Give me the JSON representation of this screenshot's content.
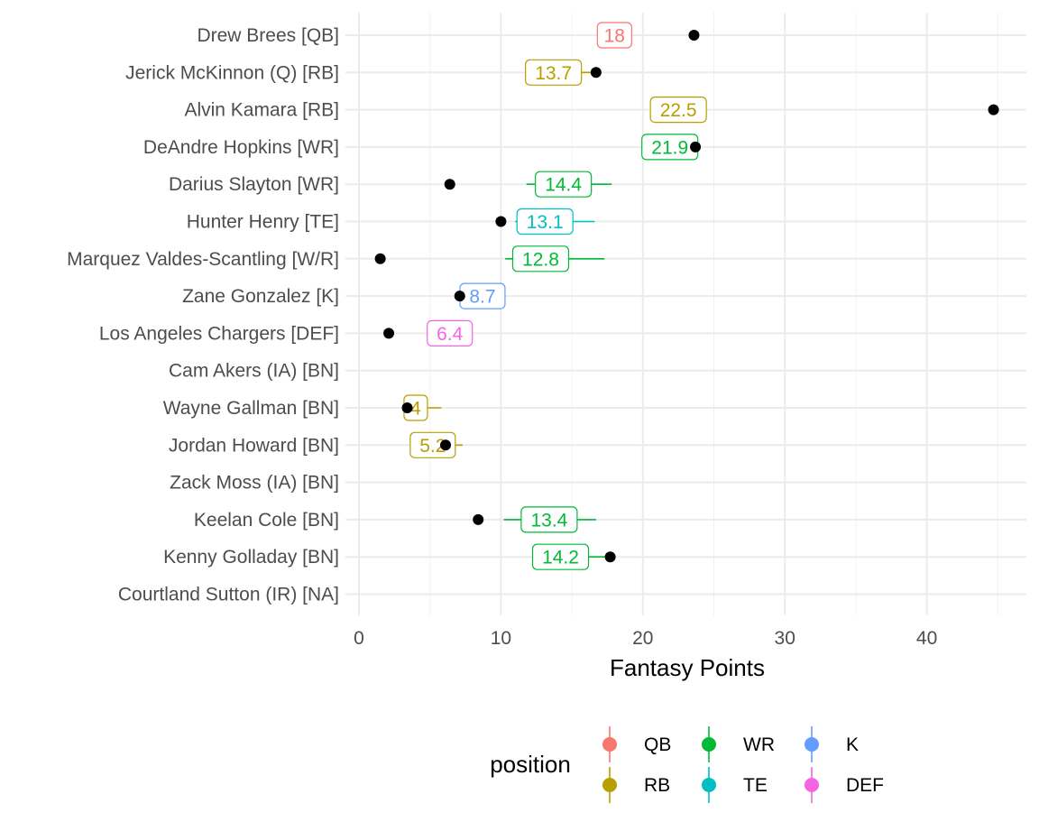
{
  "chart_data": {
    "type": "scatter",
    "xlabel": "Fantasy Points",
    "ylabel": "",
    "xlim": [
      0,
      47
    ],
    "x_ticks": [
      0,
      10,
      20,
      30,
      40
    ],
    "grid": true,
    "legend": {
      "title": "position",
      "placement": "bottom",
      "entries": [
        {
          "label": "QB",
          "color": "#F8766D"
        },
        {
          "label": "RB",
          "color": "#B79F00"
        },
        {
          "label": "WR",
          "color": "#00BA38"
        },
        {
          "label": "TE",
          "color": "#00BFC4"
        },
        {
          "label": "K",
          "color": "#619CFF"
        },
        {
          "label": "DEF",
          "color": "#F564E3"
        }
      ]
    },
    "players": [
      {
        "name": "Drew Brees [QB]",
        "position": "QB",
        "projection": 18,
        "range": null,
        "actual": 23.6
      },
      {
        "name": "Jerick McKinnon (Q) [RB]",
        "position": "RB",
        "projection": 13.7,
        "range": [
          13.7,
          16.7
        ],
        "actual": 16.7
      },
      {
        "name": "Alvin Kamara [RB]",
        "position": "RB",
        "projection": 22.5,
        "range": null,
        "actual": 44.7
      },
      {
        "name": "DeAndre Hopkins [WR]",
        "position": "WR",
        "projection": 21.9,
        "range": [
          20,
          23.8
        ],
        "actual": 23.7
      },
      {
        "name": "Darius Slayton [WR]",
        "position": "WR",
        "projection": 14.4,
        "range": [
          11.8,
          17.8
        ],
        "actual": 6.4
      },
      {
        "name": "Hunter Henry [TE]",
        "position": "TE",
        "projection": 13.1,
        "range": [
          11,
          16.6
        ],
        "actual": 10
      },
      {
        "name": "Marquez Valdes-Scantling [W/R]",
        "position": "WR",
        "projection": 12.8,
        "range": [
          10.3,
          17.3
        ],
        "actual": 1.5
      },
      {
        "name": "Zane Gonzalez [K]",
        "position": "K",
        "projection": 8.7,
        "range": [
          7.5,
          9.7
        ],
        "actual": 7.1
      },
      {
        "name": "Los Angeles Chargers [DEF]",
        "position": "DEF",
        "projection": 6.4,
        "range": [
          4.8,
          7.5
        ],
        "actual": 2.1
      },
      {
        "name": "Cam Akers (IA) [BN]",
        "position": null,
        "projection": null,
        "range": null,
        "actual": null
      },
      {
        "name": "Wayne Gallman [BN]",
        "position": "RB",
        "projection": 4,
        "range": [
          3.4,
          5.8
        ],
        "actual": 3.4
      },
      {
        "name": "Jordan Howard [BN]",
        "position": "RB",
        "projection": 5.2,
        "range": [
          4,
          7.3
        ],
        "actual": 6.1
      },
      {
        "name": "Zack Moss (IA) [BN]",
        "position": null,
        "projection": null,
        "range": null,
        "actual": null
      },
      {
        "name": "Keelan Cole [BN]",
        "position": "WR",
        "projection": 13.4,
        "range": [
          10.2,
          16.7
        ],
        "actual": 8.4
      },
      {
        "name": "Kenny Golladay [BN]",
        "position": "WR",
        "projection": 14.2,
        "range": [
          12.5,
          17.7
        ],
        "actual": 17.7
      },
      {
        "name": "Courtland Sutton (IR) [NA]",
        "position": null,
        "projection": null,
        "range": null,
        "actual": null
      }
    ]
  }
}
